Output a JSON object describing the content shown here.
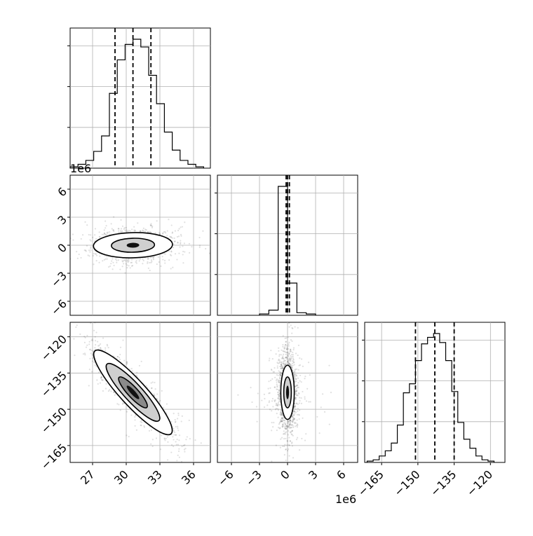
{
  "chart_data": {
    "type": "corner",
    "parameters": [
      {
        "key": "p0",
        "range": [
          25,
          37.5
        ],
        "ticks": [
          27,
          30,
          33,
          36
        ],
        "tick_labels": [
          "27",
          "30",
          "33",
          "36"
        ],
        "offset_text": "1e6"
      },
      {
        "key": "p1",
        "range": [
          -7.5,
          7.5
        ],
        "ticks": [
          -6,
          -3,
          0,
          3,
          6
        ],
        "tick_labels": [
          "−6",
          "−3",
          "0",
          "3",
          "6"
        ],
        "offset_text": "1e6"
      },
      {
        "key": "p2",
        "range": [
          -172,
          -114
        ],
        "ticks": [
          -165,
          -150,
          -135,
          -120
        ],
        "tick_labels": [
          "−165",
          "−150",
          "−135",
          "−120"
        ],
        "offset_text": ""
      }
    ],
    "histograms": [
      {
        "param": 0,
        "bin_edges": [
          25,
          25.7,
          26.4,
          27.1,
          27.8,
          28.5,
          29.2,
          29.9,
          30.6,
          31.3,
          32.0,
          32.7,
          33.4,
          34.1,
          34.8,
          35.5,
          36.2,
          36.9
        ],
        "counts": [
          0.01,
          0.03,
          0.06,
          0.13,
          0.25,
          0.58,
          0.84,
          0.96,
          1.0,
          0.94,
          0.72,
          0.5,
          0.28,
          0.14,
          0.06,
          0.03,
          0.01
        ],
        "quantiles": [
          29.0,
          30.6,
          32.2
        ]
      },
      {
        "param": 1,
        "bin_edges": [
          -3.0,
          -2.0,
          -1.0,
          0.0,
          1.0,
          2.0,
          3.0
        ],
        "counts": [
          0.01,
          0.04,
          1.0,
          0.25,
          0.02,
          0.01
        ],
        "quantiles": [
          -0.15,
          0.0,
          0.2
        ]
      },
      {
        "param": 2,
        "bin_edges": [
          -171,
          -168.5,
          -166,
          -163.5,
          -161,
          -158.5,
          -156,
          -153.5,
          -151,
          -148.5,
          -146,
          -143.5,
          -141,
          -138.5,
          -136,
          -133.5,
          -131,
          -128.5,
          -126,
          -123.5,
          -121,
          -118.5
        ],
        "counts": [
          0.01,
          0.02,
          0.05,
          0.09,
          0.15,
          0.29,
          0.54,
          0.61,
          0.79,
          0.92,
          0.97,
          1.0,
          0.93,
          0.79,
          0.55,
          0.31,
          0.18,
          0.11,
          0.05,
          0.02,
          0.01
        ],
        "quantiles": [
          -151.0,
          -143.0,
          -135.0
        ]
      }
    ],
    "scatter_panels": [
      {
        "x_param": 0,
        "y_param": 1,
        "mean": [
          30.6,
          0.0
        ],
        "std": [
          1.6,
          0.75
        ],
        "correlation": 0.05,
        "contours": [
          {
            "level": "outer",
            "sx": 2.2,
            "sy": 1.8
          },
          {
            "level": "inner",
            "sx": 1.2,
            "sy": 1.0
          }
        ]
      },
      {
        "x_param": 0,
        "y_param": 2,
        "mean": [
          30.6,
          -143.0
        ],
        "std": [
          1.6,
          8.0
        ],
        "correlation": -0.88,
        "contours": [
          {
            "level": "outer",
            "sx": 2.2,
            "sy": 2.0
          },
          {
            "level": "middle",
            "sx": 1.5,
            "sy": 1.4
          },
          {
            "level": "inner",
            "sx": 0.8,
            "sy": 0.8
          }
        ]
      },
      {
        "x_param": 1,
        "y_param": 2,
        "mean": [
          0.0,
          -143.0
        ],
        "std": [
          0.45,
          8.0
        ],
        "correlation": 0.0,
        "contours": [
          {
            "level": "outer",
            "sx": 1.4,
            "sy": 1.6
          },
          {
            "level": "inner",
            "sx": 0.8,
            "sy": 0.9
          }
        ]
      }
    ],
    "grid": true,
    "legend": "none",
    "title": "",
    "xlabel": "",
    "ylabel": ""
  }
}
